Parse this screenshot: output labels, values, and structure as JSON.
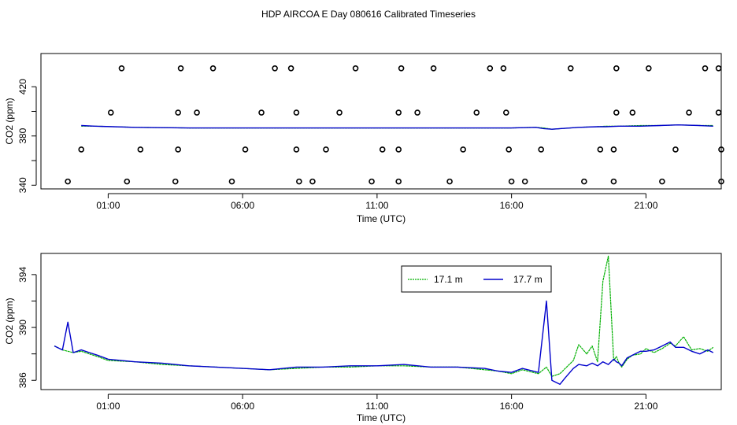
{
  "figure": {
    "title": "HDP AIRCOA E  Day 080616  Calibrated Timeseries"
  },
  "chart_data": [
    {
      "type": "line",
      "panel": "top",
      "xlabel": "Time (UTC)",
      "ylabel": "CO2 (ppm)",
      "x_unit": "hours UTC",
      "xlim": [
        -1.5,
        23.8
      ],
      "ylim": [
        337,
        447
      ],
      "x_ticks": [
        1,
        6,
        11,
        16,
        21
      ],
      "x_tick_labels": [
        "01:00",
        "06:00",
        "11:00",
        "16:00",
        "21:00"
      ],
      "y_ticks": [
        340,
        360,
        380,
        400,
        420
      ],
      "y_tick_labels": [
        "340",
        "380",
        "420"
      ],
      "grid": false,
      "series": [
        {
          "name": "17.1 m",
          "color": "#00b000",
          "x": [
            0.0,
            0.5,
            2,
            4,
            6,
            8,
            10,
            12,
            14,
            16,
            16.9,
            17.2,
            17.5,
            18.5,
            19.2,
            19.5,
            20.0,
            20.8,
            21.5,
            22.2,
            23.0,
            23.5
          ],
          "y": [
            388,
            388,
            387,
            386.5,
            386.5,
            386.5,
            386.5,
            386.5,
            386.5,
            386.5,
            387,
            386.5,
            385.5,
            387,
            387.5,
            388,
            388,
            388.5,
            388.5,
            389,
            388.5,
            388.5
          ]
        },
        {
          "name": "17.7 m",
          "color": "#0000cc",
          "x": [
            0.0,
            0.5,
            2,
            4,
            6,
            8,
            10,
            12,
            14,
            16,
            16.9,
            17.2,
            17.5,
            18.5,
            19.2,
            19.5,
            20.0,
            20.8,
            21.5,
            22.2,
            23.0,
            23.5
          ],
          "y": [
            388.5,
            388,
            387,
            386.5,
            386.5,
            386.5,
            386.5,
            386.5,
            386.5,
            386.5,
            387,
            386,
            385.5,
            387,
            387.5,
            387.5,
            388,
            388,
            388.5,
            389,
            388.5,
            388
          ]
        }
      ],
      "calibration_points": [
        {
          "x": 1.1,
          "y": 399
        },
        {
          "x": 3.6,
          "y": 399
        },
        {
          "x": 4.3,
          "y": 399
        },
        {
          "x": 6.7,
          "y": 399
        },
        {
          "x": 8.0,
          "y": 399
        },
        {
          "x": 9.6,
          "y": 399
        },
        {
          "x": 11.8,
          "y": 399
        },
        {
          "x": 12.5,
          "y": 399
        },
        {
          "x": 14.7,
          "y": 399
        },
        {
          "x": 15.8,
          "y": 399
        },
        {
          "x": 19.9,
          "y": 399
        },
        {
          "x": 20.5,
          "y": 399
        },
        {
          "x": 22.6,
          "y": 399
        },
        {
          "x": 23.7,
          "y": 399
        },
        {
          "x": 1.5,
          "y": 435
        },
        {
          "x": 3.7,
          "y": 435
        },
        {
          "x": 4.9,
          "y": 435
        },
        {
          "x": 7.2,
          "y": 435
        },
        {
          "x": 7.8,
          "y": 435
        },
        {
          "x": 10.2,
          "y": 435
        },
        {
          "x": 11.9,
          "y": 435
        },
        {
          "x": 13.1,
          "y": 435
        },
        {
          "x": 15.2,
          "y": 435
        },
        {
          "x": 15.7,
          "y": 435
        },
        {
          "x": 18.2,
          "y": 435
        },
        {
          "x": 19.9,
          "y": 435
        },
        {
          "x": 21.1,
          "y": 435
        },
        {
          "x": 23.2,
          "y": 435
        },
        {
          "x": 23.7,
          "y": 435
        },
        {
          "x": 0.0,
          "y": 369
        },
        {
          "x": 2.2,
          "y": 369
        },
        {
          "x": 3.6,
          "y": 369
        },
        {
          "x": 6.1,
          "y": 369
        },
        {
          "x": 8.0,
          "y": 369
        },
        {
          "x": 9.1,
          "y": 369
        },
        {
          "x": 11.2,
          "y": 369
        },
        {
          "x": 11.8,
          "y": 369
        },
        {
          "x": 14.2,
          "y": 369
        },
        {
          "x": 15.9,
          "y": 369
        },
        {
          "x": 17.1,
          "y": 369
        },
        {
          "x": 19.3,
          "y": 369
        },
        {
          "x": 19.8,
          "y": 369
        },
        {
          "x": 22.1,
          "y": 369
        },
        {
          "x": 23.8,
          "y": 369
        },
        {
          "x": -0.5,
          "y": 343
        },
        {
          "x": 1.7,
          "y": 343
        },
        {
          "x": 3.5,
          "y": 343
        },
        {
          "x": 5.6,
          "y": 343
        },
        {
          "x": 8.1,
          "y": 343
        },
        {
          "x": 8.6,
          "y": 343
        },
        {
          "x": 10.8,
          "y": 343
        },
        {
          "x": 11.8,
          "y": 343
        },
        {
          "x": 13.7,
          "y": 343
        },
        {
          "x": 16.0,
          "y": 343
        },
        {
          "x": 16.5,
          "y": 343
        },
        {
          "x": 18.7,
          "y": 343
        },
        {
          "x": 19.8,
          "y": 343
        },
        {
          "x": 21.6,
          "y": 343
        },
        {
          "x": 23.8,
          "y": 343
        }
      ]
    },
    {
      "type": "line",
      "panel": "bottom",
      "xlabel": "Time (UTC)",
      "ylabel": "CO2 (ppm)",
      "x_unit": "hours UTC",
      "xlim": [
        -1.5,
        23.8
      ],
      "ylim": [
        385.3,
        395.6
      ],
      "x_ticks": [
        1,
        6,
        11,
        16,
        21
      ],
      "x_tick_labels": [
        "01:00",
        "06:00",
        "11:00",
        "16:00",
        "21:00"
      ],
      "y_ticks": [
        386,
        388,
        390,
        392,
        394
      ],
      "y_tick_labels": [
        "386",
        "390",
        "394"
      ],
      "grid": false,
      "legend": {
        "placement": "top-right",
        "entries": [
          "17.1 m",
          "17.7 m"
        ]
      },
      "series": [
        {
          "name": "17.1 m",
          "color": "#00b000",
          "x": [
            -1.0,
            -0.7,
            -0.5,
            -0.3,
            0.0,
            0.3,
            0.6,
            1.0,
            2.0,
            3.0,
            4.0,
            5.0,
            6.0,
            7.0,
            8.0,
            9.0,
            10.0,
            11.0,
            12.0,
            13.0,
            14.0,
            15.0,
            15.5,
            16.0,
            16.4,
            17.0,
            17.3,
            17.5,
            17.8,
            18.0,
            18.3,
            18.5,
            18.8,
            19.0,
            19.2,
            19.4,
            19.6,
            19.8,
            19.9,
            20.0,
            20.1,
            20.3,
            20.5,
            20.8,
            21.0,
            21.3,
            21.6,
            21.9,
            22.1,
            22.4,
            22.7,
            23.0,
            23.3,
            23.5
          ],
          "y": [
            388.6,
            388.3,
            388.2,
            388.1,
            388.2,
            388.0,
            387.8,
            387.5,
            387.4,
            387.2,
            387.1,
            387.0,
            386.9,
            386.8,
            386.9,
            387.0,
            387.0,
            387.1,
            387.1,
            387.0,
            387.0,
            386.8,
            386.7,
            386.5,
            386.8,
            386.5,
            387.0,
            386.3,
            386.5,
            386.9,
            387.5,
            388.7,
            388.0,
            388.6,
            387.4,
            393.5,
            395.4,
            387.5,
            387.8,
            387.3,
            387.0,
            387.6,
            387.9,
            388.0,
            388.4,
            388.1,
            388.4,
            388.8,
            388.6,
            389.3,
            388.3,
            388.4,
            388.2,
            388.5
          ]
        },
        {
          "name": "17.7 m",
          "color": "#0000cc",
          "x": [
            -1.0,
            -0.7,
            -0.5,
            -0.3,
            0.0,
            0.3,
            0.6,
            1.0,
            2.0,
            3.0,
            4.0,
            5.0,
            6.0,
            7.0,
            8.0,
            9.0,
            10.0,
            11.0,
            12.0,
            13.0,
            14.0,
            15.0,
            15.5,
            16.0,
            16.4,
            17.0,
            17.3,
            17.5,
            17.8,
            18.0,
            18.3,
            18.5,
            18.8,
            19.0,
            19.2,
            19.4,
            19.6,
            19.8,
            19.9,
            20.0,
            20.1,
            20.3,
            20.5,
            20.8,
            21.0,
            21.3,
            21.6,
            21.9,
            22.1,
            22.4,
            22.7,
            23.0,
            23.3,
            23.5
          ],
          "y": [
            388.6,
            388.3,
            390.4,
            388.1,
            388.3,
            388.1,
            387.9,
            387.6,
            387.4,
            387.3,
            387.1,
            387.0,
            386.9,
            386.8,
            387.0,
            387.0,
            387.1,
            387.1,
            387.2,
            387.0,
            387.0,
            386.9,
            386.7,
            386.6,
            386.9,
            386.6,
            392.0,
            386.0,
            385.7,
            386.2,
            386.9,
            387.2,
            387.1,
            387.3,
            387.1,
            387.4,
            387.2,
            387.6,
            387.4,
            387.3,
            387.1,
            387.7,
            387.9,
            388.2,
            388.2,
            388.3,
            388.6,
            388.9,
            388.5,
            388.5,
            388.2,
            388.0,
            388.3,
            388.1
          ]
        }
      ]
    }
  ]
}
